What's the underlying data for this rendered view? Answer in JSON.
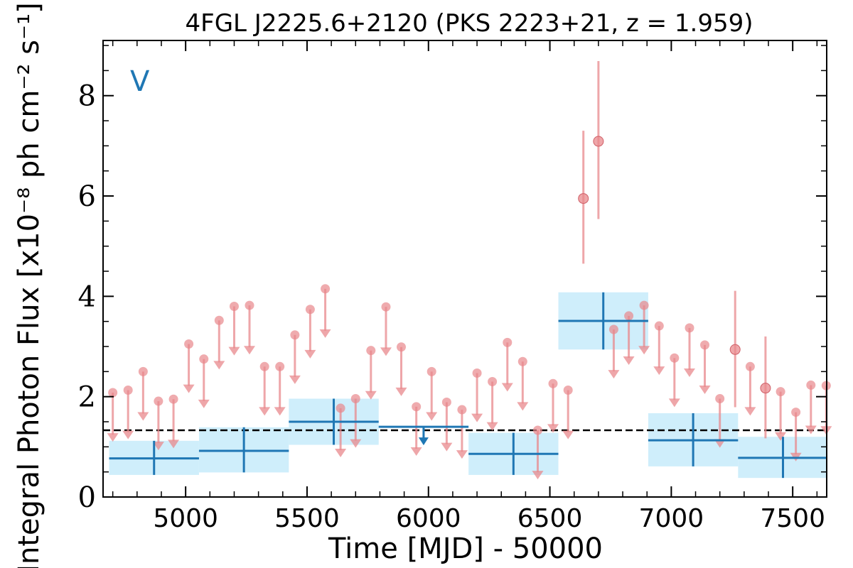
{
  "chart_data": {
    "type": "scatter",
    "title": "4FGL J2225.6+2120 (PKS 2223+21, z = 1.959)",
    "xlabel": "Time [MJD] - 50000",
    "ylabel": "Integral Photon Flux [x10⁻⁸ ph cm⁻² s⁻¹]",
    "panel_label": "V",
    "xlim": [
      4660,
      7640
    ],
    "ylim": [
      0,
      9.1
    ],
    "xticks": [
      5000,
      5500,
      6000,
      6500,
      7000,
      7500
    ],
    "yticks": [
      0,
      2,
      4,
      6,
      8
    ],
    "reference_level": 1.33,
    "colors": {
      "short_bins": "#e8888c",
      "long_bins": "#1f77b4",
      "long_band": "#cfeefb",
      "reference": "#000000"
    },
    "series": [
      {
        "points": [
          {
            "x": 4700,
            "y": 2.08,
            "upper_limit": true
          },
          {
            "x": 4763,
            "y": 2.13,
            "upper_limit": true
          },
          {
            "x": 4825,
            "y": 2.5,
            "upper_limit": true
          },
          {
            "x": 4888,
            "y": 1.91,
            "upper_limit": true
          },
          {
            "x": 4950,
            "y": 1.95,
            "upper_limit": true
          },
          {
            "x": 5013,
            "y": 3.05,
            "upper_limit": true
          },
          {
            "x": 5075,
            "y": 2.75,
            "upper_limit": true
          },
          {
            "x": 5138,
            "y": 3.52,
            "upper_limit": true
          },
          {
            "x": 5200,
            "y": 3.8,
            "upper_limit": true
          },
          {
            "x": 5263,
            "y": 3.82,
            "upper_limit": true
          },
          {
            "x": 5325,
            "y": 2.6,
            "upper_limit": true
          },
          {
            "x": 5388,
            "y": 2.6,
            "upper_limit": true
          },
          {
            "x": 5450,
            "y": 3.23,
            "upper_limit": true
          },
          {
            "x": 5513,
            "y": 3.74,
            "upper_limit": true
          },
          {
            "x": 5575,
            "y": 4.15,
            "upper_limit": true
          },
          {
            "x": 5638,
            "y": 1.77,
            "upper_limit": true
          },
          {
            "x": 5700,
            "y": 1.96,
            "upper_limit": true
          },
          {
            "x": 5763,
            "y": 2.92,
            "upper_limit": true
          },
          {
            "x": 5825,
            "y": 3.79,
            "upper_limit": true
          },
          {
            "x": 5888,
            "y": 2.99,
            "upper_limit": true
          },
          {
            "x": 5950,
            "y": 1.8,
            "upper_limit": true
          },
          {
            "x": 6013,
            "y": 2.5,
            "upper_limit": true
          },
          {
            "x": 6075,
            "y": 1.89,
            "upper_limit": true
          },
          {
            "x": 6138,
            "y": 1.74,
            "upper_limit": true
          },
          {
            "x": 6200,
            "y": 2.47,
            "upper_limit": true
          },
          {
            "x": 6263,
            "y": 2.3,
            "upper_limit": true
          },
          {
            "x": 6325,
            "y": 3.08,
            "upper_limit": true
          },
          {
            "x": 6388,
            "y": 2.7,
            "upper_limit": true
          },
          {
            "x": 6450,
            "y": 1.33,
            "upper_limit": true
          },
          {
            "x": 6513,
            "y": 2.26,
            "upper_limit": true
          },
          {
            "x": 6575,
            "y": 2.13,
            "upper_limit": true
          },
          {
            "x": 6638,
            "y": 5.95,
            "yerr": [
              1.3,
              1.35
            ]
          },
          {
            "x": 6700,
            "y": 7.09,
            "yerr": [
              1.55,
              1.6
            ]
          },
          {
            "x": 6763,
            "y": 3.34,
            "upper_limit": true
          },
          {
            "x": 6825,
            "y": 3.61,
            "upper_limit": true
          },
          {
            "x": 6888,
            "y": 3.82,
            "upper_limit": true
          },
          {
            "x": 6950,
            "y": 3.41,
            "upper_limit": true
          },
          {
            "x": 7013,
            "y": 2.77,
            "upper_limit": true
          },
          {
            "x": 7075,
            "y": 3.37,
            "upper_limit": true
          },
          {
            "x": 7138,
            "y": 3.03,
            "upper_limit": true
          },
          {
            "x": 7200,
            "y": 1.96,
            "upper_limit": true
          },
          {
            "x": 7263,
            "y": 2.94,
            "yerr": [
              1.15,
              1.17
            ]
          },
          {
            "x": 7325,
            "y": 2.6,
            "upper_limit": true
          },
          {
            "x": 7388,
            "y": 2.17,
            "yerr": [
              1.0,
              1.03
            ]
          },
          {
            "x": 7450,
            "y": 2.1,
            "upper_limit": true
          },
          {
            "x": 7513,
            "y": 1.69,
            "upper_limit": true
          },
          {
            "x": 7575,
            "y": 2.23,
            "upper_limit": true
          },
          {
            "x": 7638,
            "y": 2.22,
            "upper_limit": true
          }
        ]
      },
      {
        "points": [
          {
            "x": 4870,
            "x_start": 4685,
            "x_end": 5055,
            "y": 0.77,
            "yerr": [
              0.33,
              0.35
            ]
          },
          {
            "x": 5240,
            "x_start": 5055,
            "x_end": 5425,
            "y": 0.92,
            "yerr": [
              0.43,
              0.47
            ]
          },
          {
            "x": 5610,
            "x_start": 5425,
            "x_end": 5795,
            "y": 1.5,
            "yerr": [
              0.46,
              0.46
            ]
          },
          {
            "x": 5980,
            "x_start": 5795,
            "x_end": 6165,
            "y": 1.4,
            "upper_limit": true
          },
          {
            "x": 6350,
            "x_start": 6165,
            "x_end": 6535,
            "y": 0.86,
            "yerr": [
              0.42,
              0.42
            ]
          },
          {
            "x": 6720,
            "x_start": 6535,
            "x_end": 6905,
            "y": 3.51,
            "yerr": [
              0.57,
              0.57
            ]
          },
          {
            "x": 7090,
            "x_start": 6905,
            "x_end": 7275,
            "y": 1.13,
            "yerr": [
              0.52,
              0.54
            ]
          },
          {
            "x": 7460,
            "x_start": 7275,
            "x_end": 7645,
            "y": 0.78,
            "yerr": [
              0.4,
              0.42
            ]
          }
        ]
      }
    ]
  }
}
